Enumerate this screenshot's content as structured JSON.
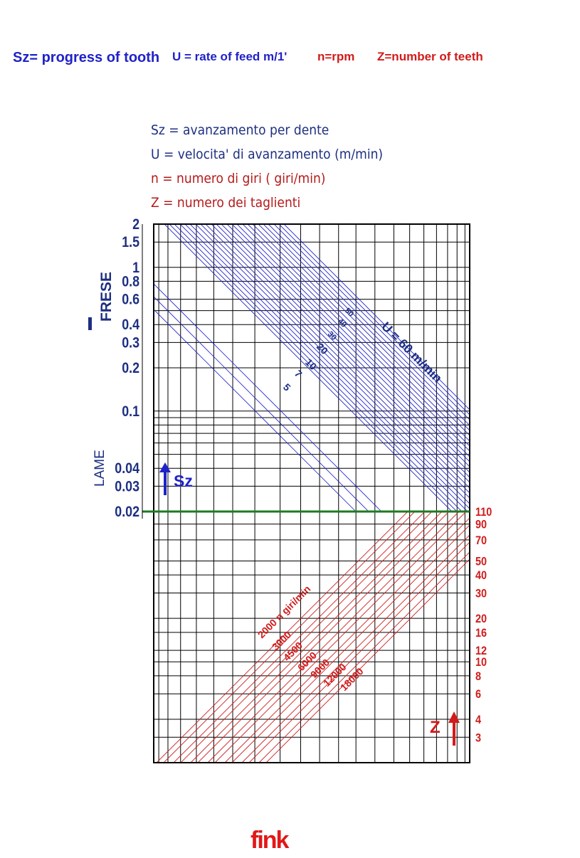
{
  "colors": {
    "blue": "#1f22c8",
    "navy": "#1d2f82",
    "red": "#d11b1b",
    "green": "#1f7a1f",
    "grid": "#000000"
  },
  "header": {
    "sz": "Sz= progress of tooth",
    "u": "U = rate of feed  m/1'",
    "n": "n=rpm",
    "z": "Z=number of teeth"
  },
  "legend": {
    "sz": "Sz = avanzamento per dente",
    "u": "U = velocita' di avanzamento (m/min)",
    "n": "n = numero di giri ( giri/min)",
    "z": "Z = numero dei taglienti"
  },
  "logo": "fink",
  "chart_data": {
    "type": "line",
    "top_axis": {
      "name": "Sz",
      "scale": "log",
      "ticks": [
        "2",
        "1.5",
        "1",
        "0.8",
        "0.6",
        "0.4",
        "0.3",
        "0.2",
        "0.1",
        "0.04",
        "0.03",
        "0.02"
      ],
      "range": [
        0.02,
        2
      ],
      "groups": [
        "FRESE",
        "LAME"
      ]
    },
    "bottom_axis": {
      "name": "Z",
      "scale": "log",
      "ticks": [
        "110",
        "90",
        "70",
        "50",
        "40",
        "30",
        "20",
        "16",
        "12",
        "10",
        "8",
        "6",
        "4",
        "3"
      ],
      "range": [
        2,
        110
      ]
    },
    "u_series": {
      "labels": [
        "5",
        "7",
        "10",
        "20",
        "30",
        "40",
        "50",
        "U = 60 m/min"
      ],
      "values": [
        5,
        7,
        10,
        20,
        30,
        40,
        50,
        60
      ]
    },
    "n_series": {
      "labels": [
        "2000  n giri/min",
        "3000",
        "4500",
        "6000",
        "9000",
        "12000",
        "18000"
      ],
      "values": [
        2000,
        3000,
        4500,
        6000,
        9000,
        12000,
        18000
      ]
    },
    "reference_line": {
      "sz": 0.02,
      "color": "#1f7a1f"
    }
  }
}
